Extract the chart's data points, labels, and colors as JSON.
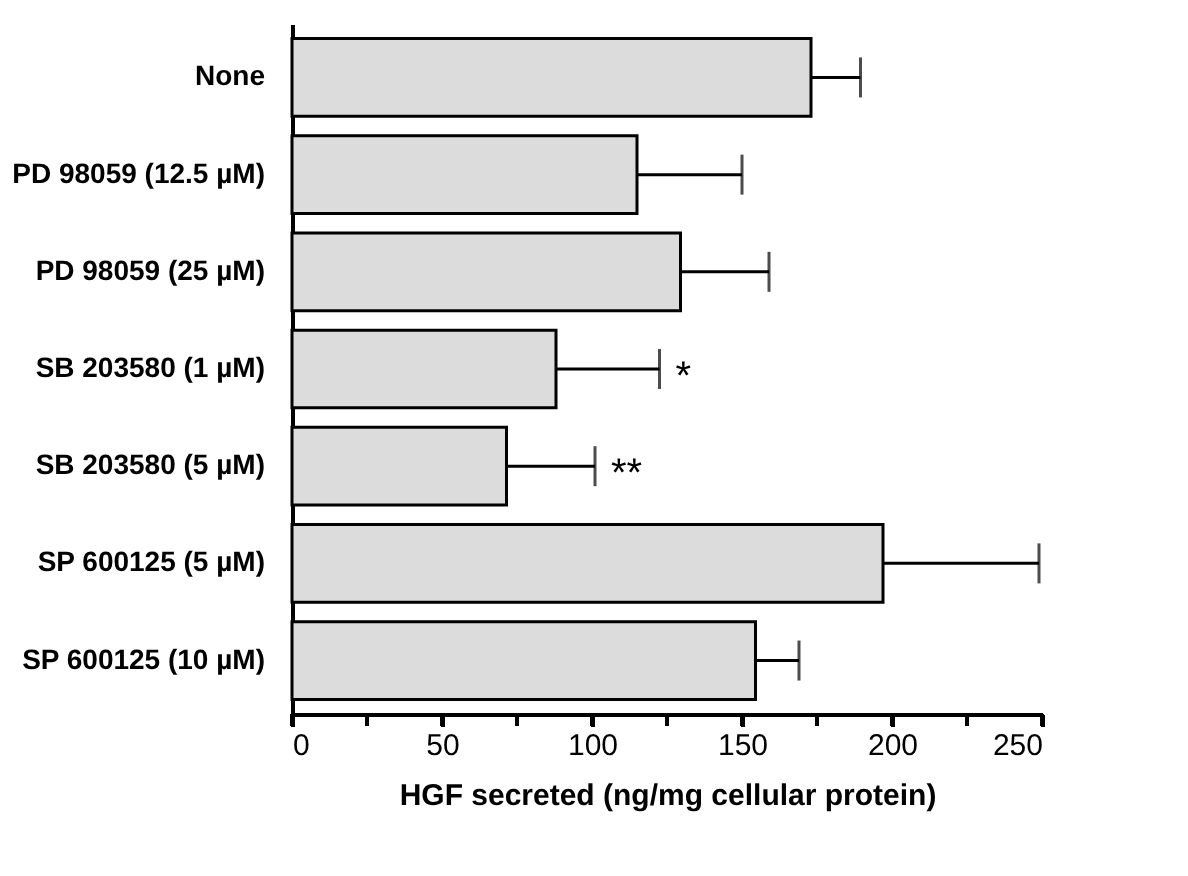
{
  "chart_data": {
    "type": "bar",
    "orientation": "horizontal",
    "xlabel": "HGF secreted (ng/mg cellular protein)",
    "categories": [
      "None",
      "PD 98059 (12.5 µM)",
      "PD 98059 (25 µM)",
      "SB 203580 (1 µM)",
      "SB 203580 (5 µM)",
      "SP 600125 (5 µM)",
      "SP 600125 (10 µM)"
    ],
    "values": [
      173,
      115,
      129.5,
      88,
      71.5,
      197,
      154.5
    ],
    "errors": [
      [
        173,
        189.5
      ],
      [
        115,
        150
      ],
      [
        129.5,
        159
      ],
      [
        88,
        122.5
      ],
      [
        71.5,
        101
      ],
      [
        197,
        249
      ],
      [
        154.5,
        169
      ]
    ],
    "color": "#dcdcdc",
    "xlim": [
      0,
      250
    ],
    "xticks": [
      0,
      {
        "value": 25,
        "label": null
      },
      50,
      {
        "value": 75,
        "label": null
      },
      100,
      {
        "value": 125,
        "label": null
      },
      150,
      {
        "value": 175,
        "label": null
      },
      200,
      {
        "value": 225,
        "label": null
      },
      250
    ],
    "annotations": [
      {
        "text": "*",
        "x": 122.5,
        "y": "SB 203580 (1 µM)"
      },
      {
        "text": "**",
        "x": 101,
        "y": "SB 203580 (5 µM)"
      }
    ]
  }
}
